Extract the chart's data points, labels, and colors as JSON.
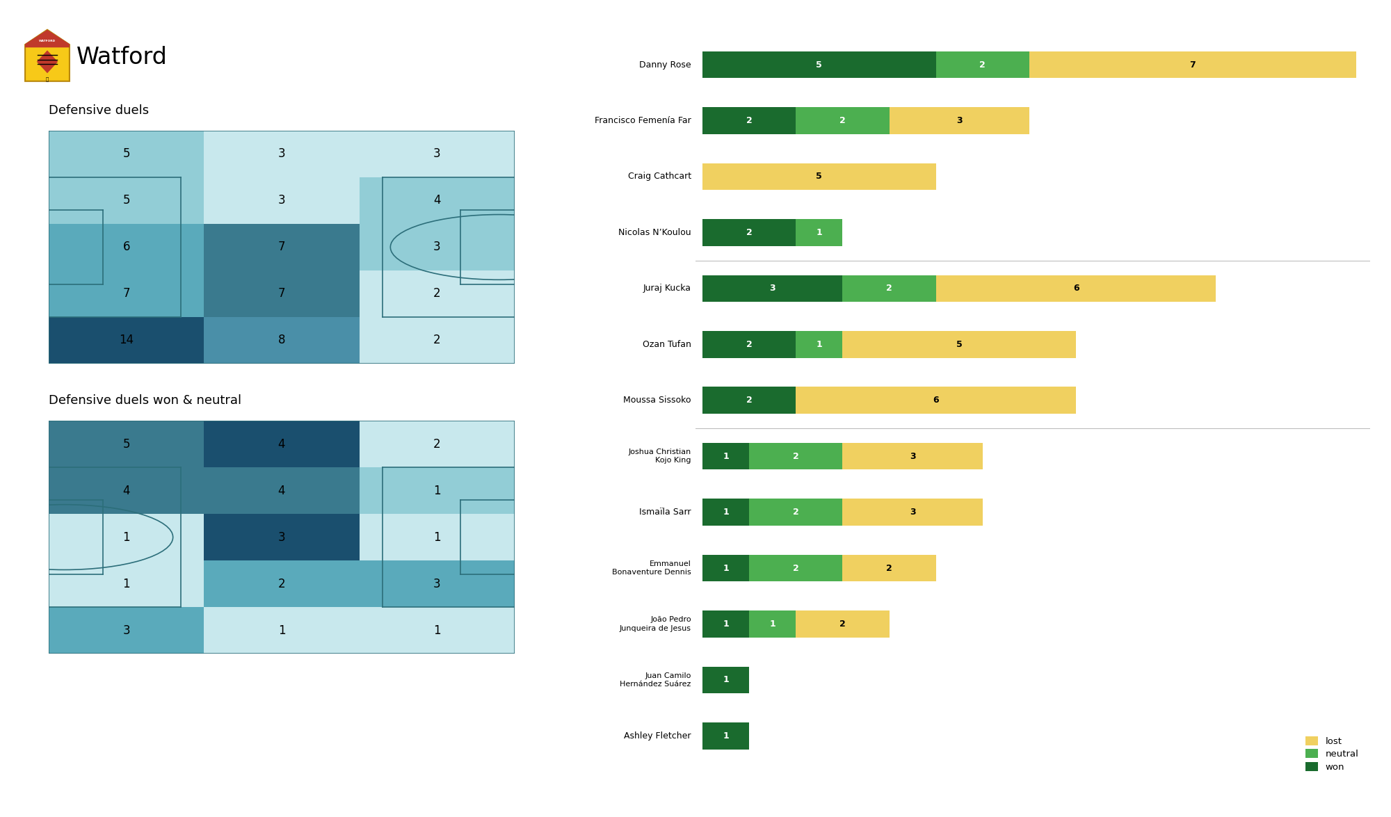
{
  "title": "Watford",
  "subtitle1": "Defensive duels",
  "subtitle2": "Defensive duels won & neutral",
  "bg_color": "#ffffff",
  "players": [
    {
      "name": "Danny Rose",
      "won": 5,
      "neutral": 2,
      "lost": 7
    },
    {
      "name": "Francisco Femenía Far",
      "won": 2,
      "neutral": 2,
      "lost": 3
    },
    {
      "name": "Craig Cathcart",
      "won": 0,
      "neutral": 0,
      "lost": 5
    },
    {
      "name": "Nicolas N’Koulou",
      "won": 2,
      "neutral": 1,
      "lost": 0
    },
    {
      "name": "Juraj Kucka",
      "won": 3,
      "neutral": 2,
      "lost": 6
    },
    {
      "name": "Ozan Tufan",
      "won": 2,
      "neutral": 1,
      "lost": 5
    },
    {
      "name": "Moussa Sissoko",
      "won": 2,
      "neutral": 0,
      "lost": 6
    },
    {
      "name": "Joshua Christian Kojo King",
      "won": 1,
      "neutral": 2,
      "lost": 3
    },
    {
      "name": "Ismaïla Sarr",
      "won": 1,
      "neutral": 2,
      "lost": 3
    },
    {
      "name": "Emmanuel Bonaventure Dennis",
      "won": 1,
      "neutral": 2,
      "lost": 2
    },
    {
      "name": "João Pedro Junqueira de Jesus",
      "won": 1,
      "neutral": 1,
      "lost": 2
    },
    {
      "name": "Juan Camilo Hernández Suárez",
      "won": 1,
      "neutral": 0,
      "lost": 0
    },
    {
      "name": "Ashley Fletcher",
      "won": 1,
      "neutral": 0,
      "lost": 0
    }
  ],
  "color_won": "#1a6b2e",
  "color_neutral": "#4caf50",
  "color_lost": "#f0d060",
  "separator_after": [
    3,
    6
  ],
  "heatmap1_grid": [
    [
      5,
      3,
      3
    ],
    [
      5,
      3,
      4
    ],
    [
      6,
      7,
      3
    ],
    [
      7,
      7,
      2
    ],
    [
      14,
      8,
      2
    ]
  ],
  "heatmap1_colors": [
    [
      "#92cdd6",
      "#c8e8ed",
      "#c8e8ed"
    ],
    [
      "#92cdd6",
      "#c8e8ed",
      "#92cdd6"
    ],
    [
      "#5aaabb",
      "#3a7a8e",
      "#92cdd6"
    ],
    [
      "#5aaabb",
      "#3a7a8e",
      "#c8e8ed"
    ],
    [
      "#1a4f6e",
      "#4a8fa8",
      "#c8e8ed"
    ]
  ],
  "heatmap2_grid": [
    [
      5,
      4,
      2
    ],
    [
      4,
      4,
      1
    ],
    [
      1,
      3,
      1
    ],
    [
      1,
      2,
      3
    ],
    [
      3,
      1,
      1
    ]
  ],
  "heatmap2_colors": [
    [
      "#3a7a8e",
      "#1a4f6e",
      "#c8e8ed"
    ],
    [
      "#3a7a8e",
      "#3a7a8e",
      "#92cdd6"
    ],
    [
      "#c8e8ed",
      "#1a4f6e",
      "#c8e8ed"
    ],
    [
      "#c8e8ed",
      "#5aaabb",
      "#5aaabb"
    ],
    [
      "#5aaabb",
      "#c8e8ed",
      "#c8e8ed"
    ]
  ],
  "pitch_line_color": "#2c6e7a",
  "pitch_lw": 1.2
}
